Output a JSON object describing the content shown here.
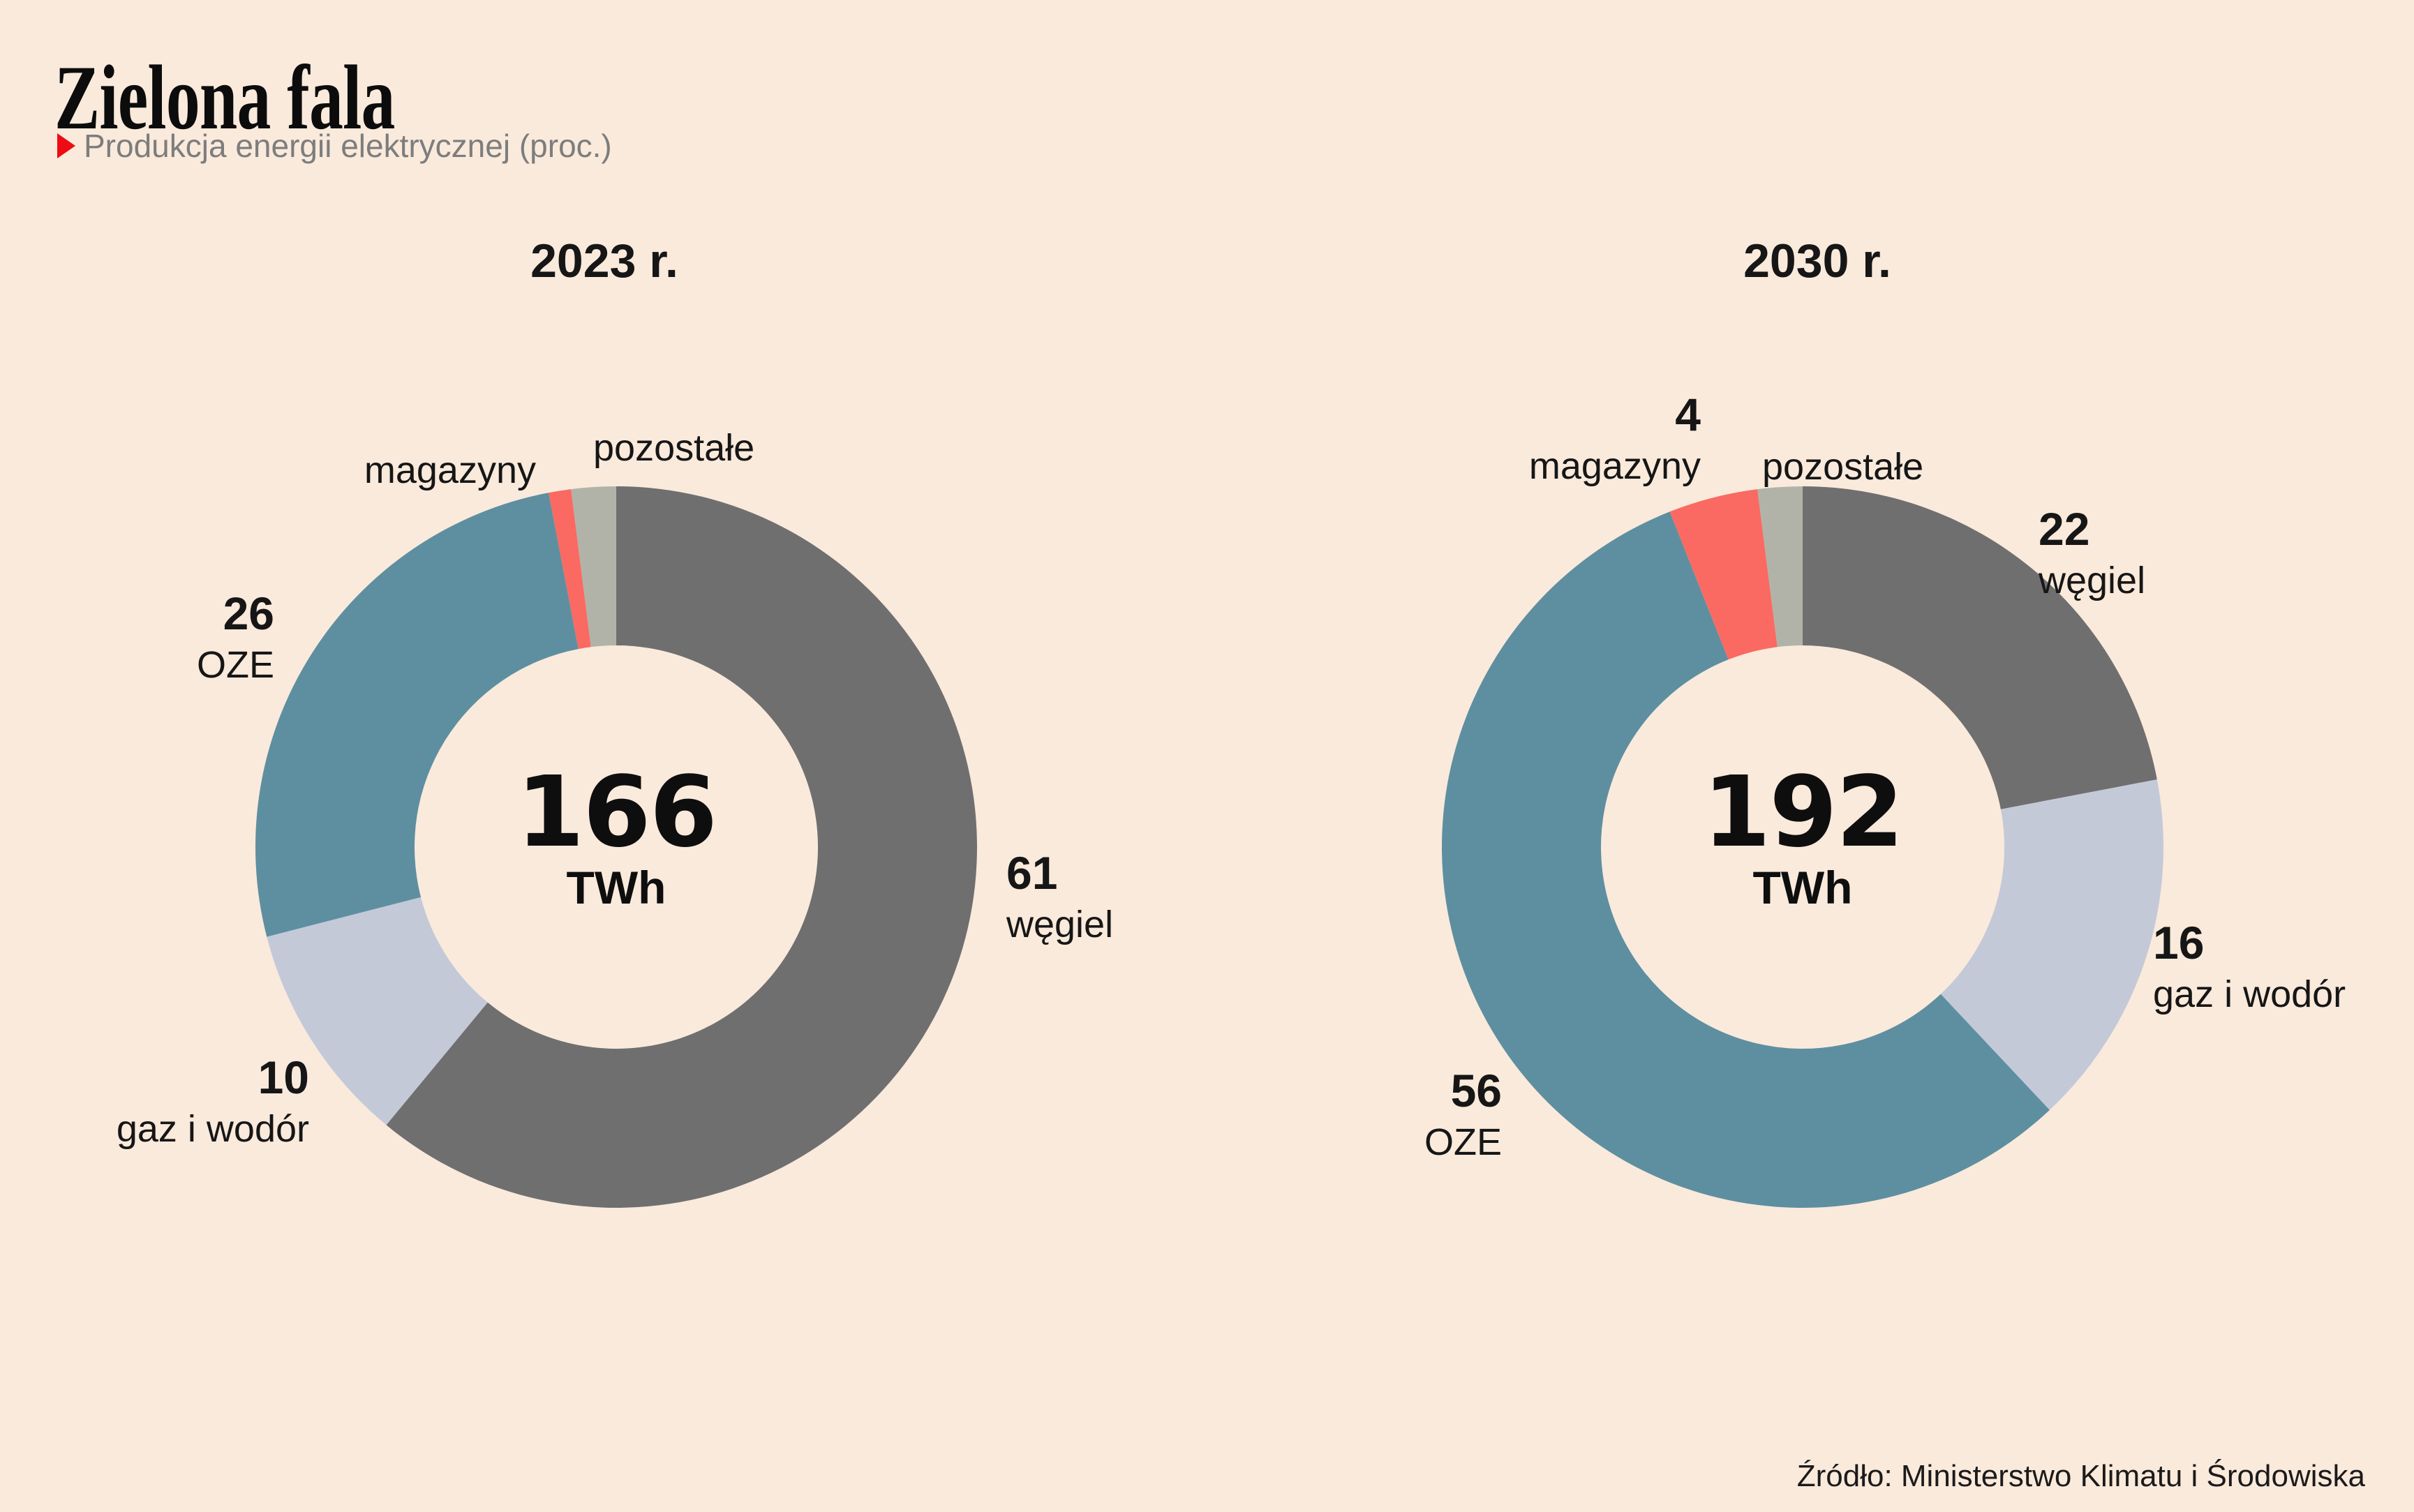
{
  "header": {
    "title": "Zielona fala",
    "subtitle": "Produkcja energii elektrycznej (proc.)"
  },
  "source": "Źródło: Ministerstwo Klimatu i Środowiska",
  "colors": {
    "background": "#faeadc",
    "accent_red": "#ee0b13",
    "wegiel": "#6f6f6f",
    "gaz_i_wodor": "#c4c9d8",
    "oze": "#5e8fa0",
    "magazyny": "#fa6a62",
    "pozostale": "#b2b3a8"
  },
  "chart_data": [
    {
      "type": "pie",
      "title": "2023 r.",
      "center_value": "166",
      "center_unit": "TWh",
      "start_angle_deg": 0,
      "direction": "clockwise",
      "slices": [
        {
          "label": "węgiel",
          "value": 61,
          "display_value": "61",
          "color": "#6f6f6f"
        },
        {
          "label": "gaz i wodór",
          "value": 10,
          "display_value": "10",
          "color": "#c4c9d8"
        },
        {
          "label": "OZE",
          "value": 26,
          "display_value": "26",
          "color": "#5e8fa0"
        },
        {
          "label": "magazyny",
          "value": 1,
          "display_value": "",
          "color": "#fa6a62"
        },
        {
          "label": "pozostałe",
          "value": 2,
          "display_value": "",
          "color": "#b2b3a8"
        }
      ]
    },
    {
      "type": "pie",
      "title": "2030 r.",
      "center_value": "192",
      "center_unit": "TWh",
      "start_angle_deg": 0,
      "direction": "clockwise",
      "slices": [
        {
          "label": "węgiel",
          "value": 22,
          "display_value": "22",
          "color": "#6f6f6f"
        },
        {
          "label": "gaz i wodór",
          "value": 16,
          "display_value": "16",
          "color": "#c4c9d8"
        },
        {
          "label": "OZE",
          "value": 56,
          "display_value": "56",
          "color": "#5e8fa0"
        },
        {
          "label": "magazyny",
          "value": 4,
          "display_value": "4",
          "color": "#fa6a62"
        },
        {
          "label": "pozostałe",
          "value": 2,
          "display_value": "",
          "color": "#b2b3a8"
        }
      ]
    }
  ]
}
